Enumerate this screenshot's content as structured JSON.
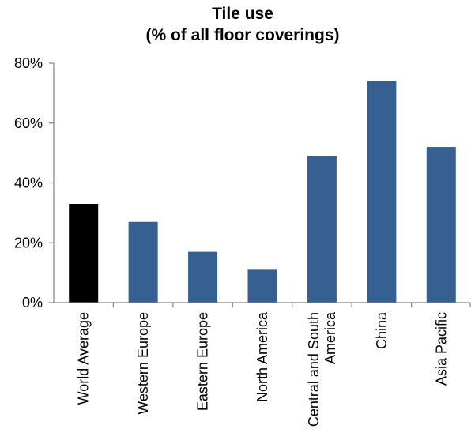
{
  "chart_data": {
    "type": "bar",
    "title_lines": [
      "Tile use",
      "(% of all floor coverings)"
    ],
    "xlabel": "",
    "ylabel": "",
    "categories": [
      [
        "World Average"
      ],
      [
        "Western Europe"
      ],
      [
        "Eastern Europe"
      ],
      [
        "North America"
      ],
      [
        "Central and South",
        "America"
      ],
      [
        "China"
      ],
      [
        "Asia Pacific"
      ]
    ],
    "values": [
      33,
      27,
      17,
      11,
      49,
      74,
      52
    ],
    "bar_colors": [
      "#000000",
      "#366092",
      "#366092",
      "#366092",
      "#366092",
      "#366092",
      "#366092"
    ],
    "ylim": [
      0,
      80
    ],
    "yticks": [
      0,
      20,
      40,
      60,
      80
    ],
    "ytick_labels": [
      "0%",
      "20%",
      "40%",
      "60%",
      "80%"
    ],
    "grid": false,
    "legend": "none"
  }
}
